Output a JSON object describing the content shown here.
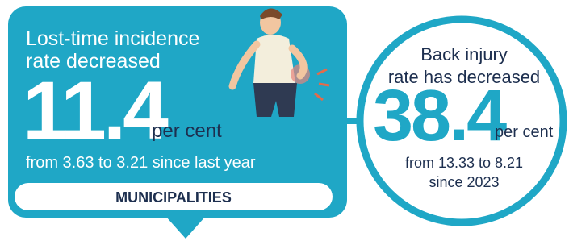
{
  "left_panel": {
    "title_lines": [
      "Lost-time incidence",
      "rate decreased"
    ],
    "value": 11.4,
    "unit": "per cent",
    "detail": "from 3.63 to 3.21 since last year",
    "label": "MUNICIPALITIES"
  },
  "right_panel": {
    "title_lines": [
      "Back injury",
      "rate has decreased"
    ],
    "value": 38.4,
    "unit": "per cent",
    "detail_lines": [
      "from 13.33 to 8.21",
      "since 2023"
    ]
  }
}
